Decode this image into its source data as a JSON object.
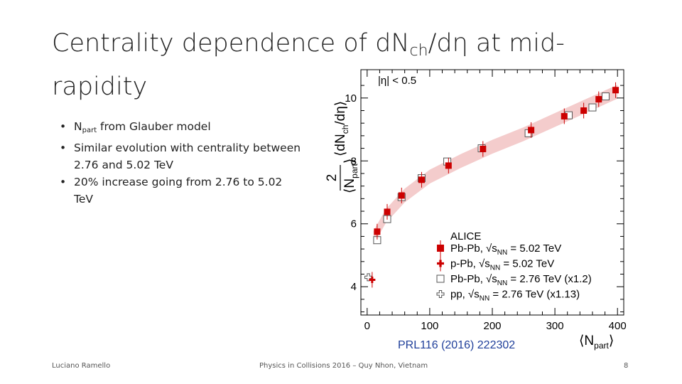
{
  "slide": {
    "title_main": "Centrality dependence of dN",
    "title_sub": "ch",
    "title_tail": "/dη at mid-rapidity",
    "bullets": [
      {
        "pre": "N",
        "sub": "part",
        "post": " from Glauber model"
      },
      {
        "pre": "Similar evolution with centrality between 2.76 and 5.02 TeV",
        "sub": "",
        "post": ""
      },
      {
        "pre": "20% increase going from 2.76 to 5.02 TeV",
        "sub": "",
        "post": ""
      }
    ],
    "bullet_glyph": "•",
    "reference": "PRL116 (2016) 222302",
    "footer_left": "Luciano Ramello",
    "footer_center": "Physics in Collisions 2016 – Quy Nhon, Vietnam",
    "footer_right": "8"
  },
  "chart_data": {
    "type": "scatter",
    "annotation": "|η| < 0.5",
    "xlabel": "⟨N_part⟩",
    "ylabel": "2/⟨N_part⟩ ⟨dN_ch/dη⟩",
    "ylabel_parts": {
      "frac_num": "2",
      "frac_den": "⟨N",
      "den_sub": "part",
      "den_close": "⟩",
      "main": "⟨dN",
      "main_sub": "ch",
      "main_close": "/dη⟩"
    },
    "xlabel_parts": {
      "open": "⟨N",
      "sub": "part",
      "close": "⟩"
    },
    "xlim": [
      -10,
      410
    ],
    "ylim": [
      3.1,
      10.9
    ],
    "xticks": [
      0,
      100,
      200,
      300,
      400
    ],
    "yticks": [
      4,
      6,
      8,
      10
    ],
    "legend_title": "ALICE",
    "legend_position": "bottom-right",
    "colors": {
      "red": "#cc0000",
      "band": "#f4cccc",
      "axis": "#000000",
      "open": "#555555"
    },
    "series": [
      {
        "name": "Pb-Pb, √s_NN = 5.02 TeV",
        "legend_label": {
          "pre": "Pb-Pb, ",
          "sub": "NN",
          "post": " = 5.02 TeV"
        },
        "marker": "filled-square",
        "x": [
          16,
          32,
          55,
          87,
          130,
          185,
          262,
          315,
          346,
          370,
          397
        ],
        "y": [
          5.75,
          6.38,
          6.9,
          7.4,
          7.85,
          8.38,
          8.98,
          9.42,
          9.6,
          9.96,
          10.25
        ]
      },
      {
        "name": "p-Pb, √s_NN = 5.02 TeV",
        "legend_label": {
          "pre": "p-Pb, ",
          "sub": "NN",
          "post": " = 5.02 TeV"
        },
        "marker": "filled-cross",
        "x": [
          8
        ],
        "y": [
          4.22
        ]
      },
      {
        "name": "Pb-Pb, √s_NN = 2.76 TeV (x1.2)",
        "legend_label": {
          "pre": "Pb-Pb, ",
          "sub": "NN",
          "post": " = 2.76 TeV (x1.2)"
        },
        "marker": "open-square",
        "x": [
          16,
          32,
          55,
          87,
          128,
          183,
          258,
          322,
          360,
          381
        ],
        "y": [
          5.48,
          6.15,
          6.85,
          7.45,
          7.98,
          8.4,
          8.88,
          9.45,
          9.7,
          10.05
        ]
      },
      {
        "name": "pp, √s_NN = 2.76 TeV (x1.13)",
        "legend_label": {
          "pre": "pp, ",
          "sub": "NN",
          "post": " = 2.76 TeV (x1.13)"
        },
        "marker": "open-cross",
        "x": [
          2
        ],
        "y": [
          4.3
        ]
      }
    ],
    "band": {
      "x": [
        10,
        30,
        60,
        100,
        150,
        200,
        250,
        300,
        350,
        400
      ],
      "center": [
        5.55,
        6.25,
        6.9,
        7.5,
        8.0,
        8.45,
        8.85,
        9.3,
        9.75,
        10.2
      ],
      "halfwidth": 0.22
    }
  }
}
